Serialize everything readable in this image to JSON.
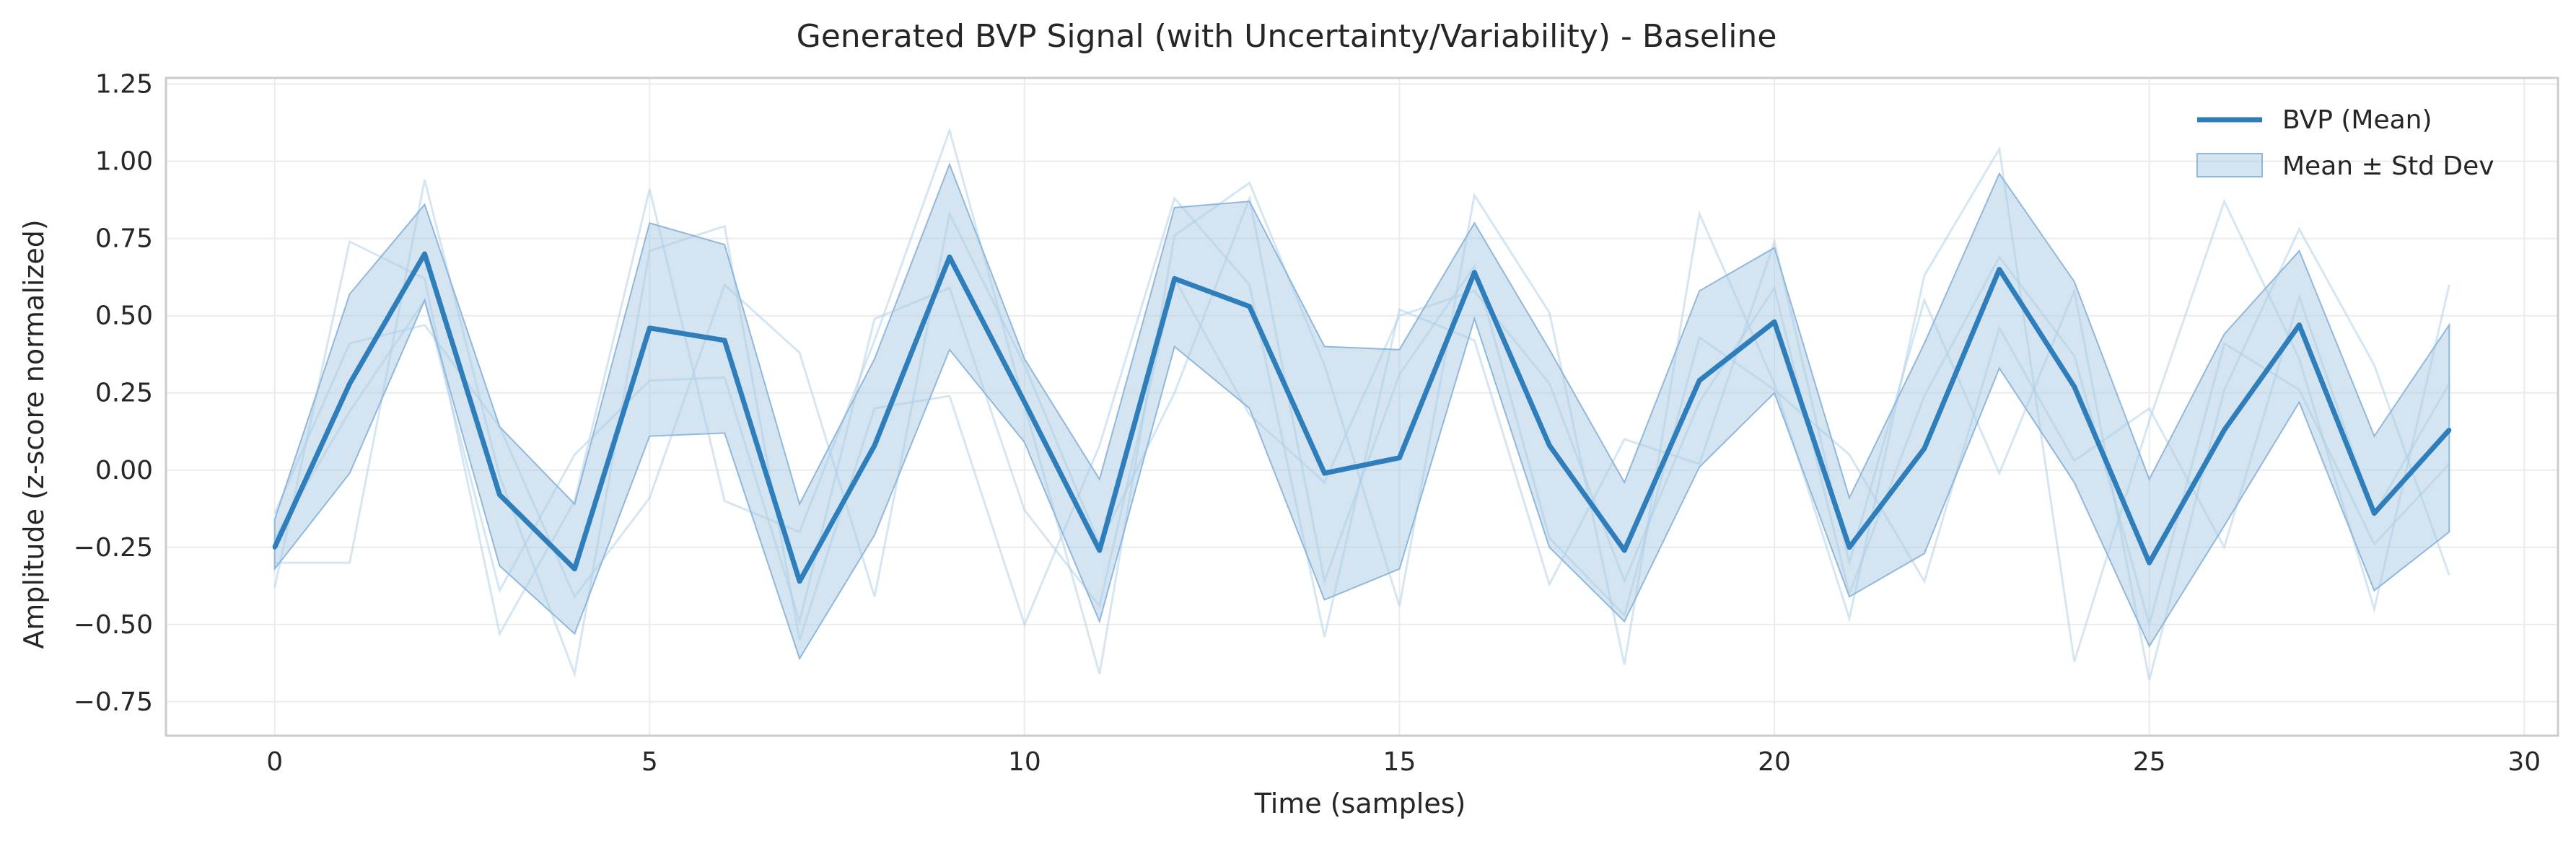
{
  "chart_data": {
    "type": "line",
    "title": "Generated BVP Signal (with Uncertainty/Variability) - Baseline",
    "xlabel": "Time (samples)",
    "ylabel": "Amplitude (z-score normalized)",
    "xlim": [
      -1.45,
      30.45
    ],
    "ylim": [
      -0.86,
      1.27
    ],
    "x_ticks": [
      0,
      5,
      10,
      15,
      20,
      25,
      30
    ],
    "y_ticks": [
      -0.75,
      -0.5,
      -0.25,
      0.0,
      0.25,
      0.5,
      0.75,
      1.0,
      1.25
    ],
    "x_tick_labels": [
      "0",
      "5",
      "10",
      "15",
      "20",
      "25",
      "30"
    ],
    "y_tick_labels": [
      "−0.75",
      "−0.50",
      "−0.25",
      "0.00",
      "0.25",
      "0.50",
      "0.75",
      "1.00",
      "1.25"
    ],
    "grid": true,
    "legend_position": "top-right",
    "colors": {
      "mean": "#2e7ebc",
      "band": "#a9cbe4",
      "band_edge": "#8fb8dc",
      "samples": "#b3d1ea"
    },
    "x": [
      0,
      1,
      2,
      3,
      4,
      5,
      6,
      7,
      8,
      9,
      10,
      11,
      12,
      13,
      14,
      15,
      16,
      17,
      18,
      19,
      20,
      21,
      22,
      23,
      24,
      25,
      26,
      27,
      28,
      29
    ],
    "series": [
      {
        "name": "BVP (Mean)",
        "values": [
          -0.25,
          0.28,
          0.7,
          -0.08,
          -0.32,
          0.46,
          0.42,
          -0.36,
          0.08,
          0.69,
          0.22,
          -0.26,
          0.62,
          0.53,
          -0.01,
          0.04,
          0.64,
          0.08,
          -0.26,
          0.29,
          0.48,
          -0.25,
          0.07,
          0.65,
          0.27,
          -0.3,
          0.13,
          0.47,
          -0.14,
          0.13
        ]
      },
      {
        "name": "Mean ± Std Dev",
        "lower": [
          -0.32,
          -0.01,
          0.55,
          -0.31,
          -0.53,
          0.11,
          0.12,
          -0.61,
          -0.21,
          0.39,
          0.09,
          -0.49,
          0.4,
          0.2,
          -0.42,
          -0.32,
          0.49,
          -0.25,
          -0.49,
          0.01,
          0.25,
          -0.41,
          -0.27,
          0.33,
          -0.04,
          -0.57,
          -0.18,
          0.22,
          -0.39,
          -0.2
        ],
        "upper": [
          -0.16,
          0.57,
          0.86,
          0.14,
          -0.11,
          0.8,
          0.73,
          -0.11,
          0.36,
          0.99,
          0.36,
          -0.03,
          0.85,
          0.87,
          0.4,
          0.39,
          0.8,
          0.39,
          -0.04,
          0.58,
          0.72,
          -0.09,
          0.41,
          0.96,
          0.61,
          -0.03,
          0.44,
          0.71,
          0.11,
          0.47
        ]
      }
    ],
    "sample_traces": [
      [
        -0.38,
        0.74,
        0.62,
        -0.53,
        -0.1,
        0.91,
        -0.1,
        -0.2,
        0.42,
        1.1,
        0.21,
        -0.66,
        0.76,
        0.93,
        0.34,
        -0.44,
        0.89,
        0.51,
        -0.63,
        0.83,
        0.28,
        -0.48,
        0.63,
        1.04,
        -0.62,
        0.16,
        0.87,
        0.36,
        -0.45,
        0.6
      ],
      [
        -0.3,
        -0.3,
        0.94,
        -0.02,
        -0.66,
        0.71,
        0.79,
        -0.55,
        0.2,
        0.24,
        -0.5,
        0.08,
        0.88,
        0.6,
        -0.54,
        0.52,
        0.42,
        -0.37,
        0.1,
        0.02,
        0.74,
        -0.3,
        0.55,
        -0.01,
        0.58,
        -0.68,
        0.26,
        0.78,
        0.34,
        -0.34
      ],
      [
        -0.14,
        0.41,
        0.47,
        0.14,
        -0.41,
        -0.09,
        0.6,
        0.38,
        -0.41,
        0.83,
        0.34,
        -0.24,
        0.25,
        0.88,
        -0.36,
        0.31,
        0.66,
        -0.22,
        -0.47,
        0.43,
        0.26,
        0.05,
        -0.36,
        0.46,
        0.03,
        0.2,
        -0.25,
        0.56,
        -0.14,
        0.28
      ],
      [
        -0.22,
        0.19,
        0.55,
        -0.39,
        0.05,
        0.29,
        0.3,
        -0.49,
        0.49,
        0.59,
        -0.13,
        -0.44,
        0.62,
        0.18,
        -0.04,
        0.5,
        0.58,
        0.28,
        -0.36,
        0.22,
        0.59,
        -0.4,
        0.24,
        0.69,
        0.37,
        -0.5,
        0.41,
        0.26,
        -0.24,
        0.02
      ]
    ]
  }
}
